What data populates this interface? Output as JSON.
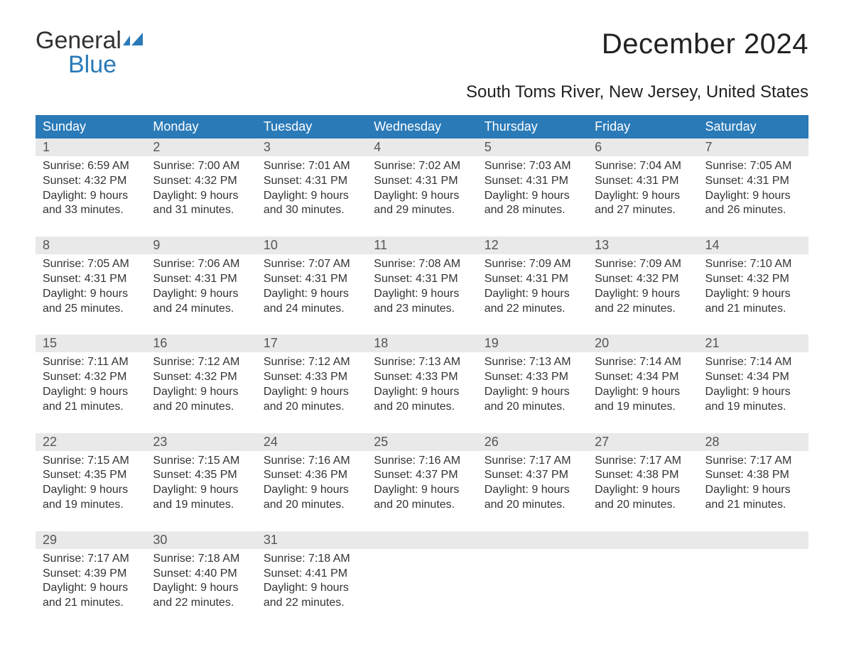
{
  "logo": {
    "line1": "General",
    "line2": "Blue"
  },
  "title": "December 2024",
  "subtitle": "South Toms River, New Jersey, United States",
  "day_headers": [
    "Sunday",
    "Monday",
    "Tuesday",
    "Wednesday",
    "Thursday",
    "Friday",
    "Saturday"
  ],
  "colors": {
    "header_bg": "#2a7ab8",
    "header_fg": "#ffffff",
    "daynum_bg": "#e9e9e9",
    "daynum_fg": "#555555",
    "body_fg": "#333333",
    "page_bg": "#ffffff",
    "accent_line": "#2a7ab8"
  },
  "fonts": {
    "title_size_pt": 40,
    "subtitle_size_pt": 24,
    "header_size_pt": 18,
    "body_size_pt": 16
  },
  "weeks": [
    [
      {
        "n": "1",
        "sr": "Sunrise: 6:59 AM",
        "ss": "Sunset: 4:32 PM",
        "d1": "Daylight: 9 hours",
        "d2": "and 33 minutes."
      },
      {
        "n": "2",
        "sr": "Sunrise: 7:00 AM",
        "ss": "Sunset: 4:32 PM",
        "d1": "Daylight: 9 hours",
        "d2": "and 31 minutes."
      },
      {
        "n": "3",
        "sr": "Sunrise: 7:01 AM",
        "ss": "Sunset: 4:31 PM",
        "d1": "Daylight: 9 hours",
        "d2": "and 30 minutes."
      },
      {
        "n": "4",
        "sr": "Sunrise: 7:02 AM",
        "ss": "Sunset: 4:31 PM",
        "d1": "Daylight: 9 hours",
        "d2": "and 29 minutes."
      },
      {
        "n": "5",
        "sr": "Sunrise: 7:03 AM",
        "ss": "Sunset: 4:31 PM",
        "d1": "Daylight: 9 hours",
        "d2": "and 28 minutes."
      },
      {
        "n": "6",
        "sr": "Sunrise: 7:04 AM",
        "ss": "Sunset: 4:31 PM",
        "d1": "Daylight: 9 hours",
        "d2": "and 27 minutes."
      },
      {
        "n": "7",
        "sr": "Sunrise: 7:05 AM",
        "ss": "Sunset: 4:31 PM",
        "d1": "Daylight: 9 hours",
        "d2": "and 26 minutes."
      }
    ],
    [
      {
        "n": "8",
        "sr": "Sunrise: 7:05 AM",
        "ss": "Sunset: 4:31 PM",
        "d1": "Daylight: 9 hours",
        "d2": "and 25 minutes."
      },
      {
        "n": "9",
        "sr": "Sunrise: 7:06 AM",
        "ss": "Sunset: 4:31 PM",
        "d1": "Daylight: 9 hours",
        "d2": "and 24 minutes."
      },
      {
        "n": "10",
        "sr": "Sunrise: 7:07 AM",
        "ss": "Sunset: 4:31 PM",
        "d1": "Daylight: 9 hours",
        "d2": "and 24 minutes."
      },
      {
        "n": "11",
        "sr": "Sunrise: 7:08 AM",
        "ss": "Sunset: 4:31 PM",
        "d1": "Daylight: 9 hours",
        "d2": "and 23 minutes."
      },
      {
        "n": "12",
        "sr": "Sunrise: 7:09 AM",
        "ss": "Sunset: 4:31 PM",
        "d1": "Daylight: 9 hours",
        "d2": "and 22 minutes."
      },
      {
        "n": "13",
        "sr": "Sunrise: 7:09 AM",
        "ss": "Sunset: 4:32 PM",
        "d1": "Daylight: 9 hours",
        "d2": "and 22 minutes."
      },
      {
        "n": "14",
        "sr": "Sunrise: 7:10 AM",
        "ss": "Sunset: 4:32 PM",
        "d1": "Daylight: 9 hours",
        "d2": "and 21 minutes."
      }
    ],
    [
      {
        "n": "15",
        "sr": "Sunrise: 7:11 AM",
        "ss": "Sunset: 4:32 PM",
        "d1": "Daylight: 9 hours",
        "d2": "and 21 minutes."
      },
      {
        "n": "16",
        "sr": "Sunrise: 7:12 AM",
        "ss": "Sunset: 4:32 PM",
        "d1": "Daylight: 9 hours",
        "d2": "and 20 minutes."
      },
      {
        "n": "17",
        "sr": "Sunrise: 7:12 AM",
        "ss": "Sunset: 4:33 PM",
        "d1": "Daylight: 9 hours",
        "d2": "and 20 minutes."
      },
      {
        "n": "18",
        "sr": "Sunrise: 7:13 AM",
        "ss": "Sunset: 4:33 PM",
        "d1": "Daylight: 9 hours",
        "d2": "and 20 minutes."
      },
      {
        "n": "19",
        "sr": "Sunrise: 7:13 AM",
        "ss": "Sunset: 4:33 PM",
        "d1": "Daylight: 9 hours",
        "d2": "and 20 minutes."
      },
      {
        "n": "20",
        "sr": "Sunrise: 7:14 AM",
        "ss": "Sunset: 4:34 PM",
        "d1": "Daylight: 9 hours",
        "d2": "and 19 minutes."
      },
      {
        "n": "21",
        "sr": "Sunrise: 7:14 AM",
        "ss": "Sunset: 4:34 PM",
        "d1": "Daylight: 9 hours",
        "d2": "and 19 minutes."
      }
    ],
    [
      {
        "n": "22",
        "sr": "Sunrise: 7:15 AM",
        "ss": "Sunset: 4:35 PM",
        "d1": "Daylight: 9 hours",
        "d2": "and 19 minutes."
      },
      {
        "n": "23",
        "sr": "Sunrise: 7:15 AM",
        "ss": "Sunset: 4:35 PM",
        "d1": "Daylight: 9 hours",
        "d2": "and 19 minutes."
      },
      {
        "n": "24",
        "sr": "Sunrise: 7:16 AM",
        "ss": "Sunset: 4:36 PM",
        "d1": "Daylight: 9 hours",
        "d2": "and 20 minutes."
      },
      {
        "n": "25",
        "sr": "Sunrise: 7:16 AM",
        "ss": "Sunset: 4:37 PM",
        "d1": "Daylight: 9 hours",
        "d2": "and 20 minutes."
      },
      {
        "n": "26",
        "sr": "Sunrise: 7:17 AM",
        "ss": "Sunset: 4:37 PM",
        "d1": "Daylight: 9 hours",
        "d2": "and 20 minutes."
      },
      {
        "n": "27",
        "sr": "Sunrise: 7:17 AM",
        "ss": "Sunset: 4:38 PM",
        "d1": "Daylight: 9 hours",
        "d2": "and 20 minutes."
      },
      {
        "n": "28",
        "sr": "Sunrise: 7:17 AM",
        "ss": "Sunset: 4:38 PM",
        "d1": "Daylight: 9 hours",
        "d2": "and 21 minutes."
      }
    ],
    [
      {
        "n": "29",
        "sr": "Sunrise: 7:17 AM",
        "ss": "Sunset: 4:39 PM",
        "d1": "Daylight: 9 hours",
        "d2": "and 21 minutes."
      },
      {
        "n": "30",
        "sr": "Sunrise: 7:18 AM",
        "ss": "Sunset: 4:40 PM",
        "d1": "Daylight: 9 hours",
        "d2": "and 22 minutes."
      },
      {
        "n": "31",
        "sr": "Sunrise: 7:18 AM",
        "ss": "Sunset: 4:41 PM",
        "d1": "Daylight: 9 hours",
        "d2": "and 22 minutes."
      },
      null,
      null,
      null,
      null
    ]
  ]
}
